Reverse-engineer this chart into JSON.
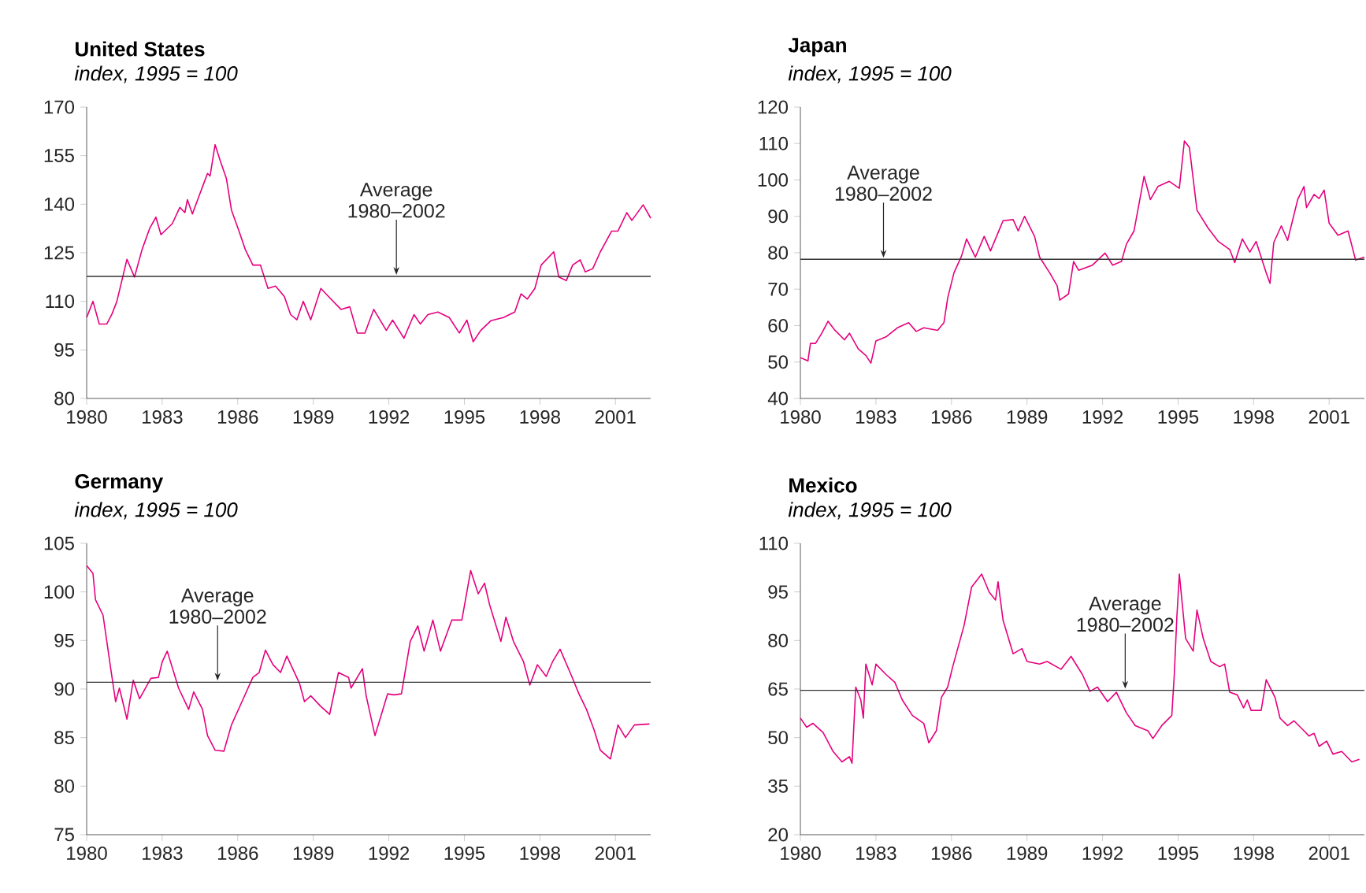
{
  "chart_data": [
    {
      "type": "line",
      "title": "United States",
      "subtitle": "*index, 1995 = 100*",
      "x": [
        1980,
        1980.25,
        1980.5,
        1980.8,
        1981.0,
        1981.2,
        1981.6,
        1981.9,
        1982.2,
        1982.5,
        1982.75,
        1982.95,
        1983.4,
        1983.7,
        1983.9,
        1984.0,
        1984.2,
        1984.6,
        1984.8,
        1984.9,
        1985.1,
        1985.3,
        1985.55,
        1985.75,
        1986.05,
        1986.3,
        1986.6,
        1986.9,
        1987.2,
        1987.5,
        1987.85,
        1988.1,
        1988.35,
        1988.6,
        1988.9,
        1989.3,
        1989.7,
        1990.1,
        1990.45,
        1990.75,
        1991.05,
        1991.4,
        1991.9,
        1992.15,
        1992.6,
        1993.0,
        1993.25,
        1993.55,
        1993.95,
        1994.4,
        1994.8,
        1995.1,
        1995.35,
        1995.65,
        1996.05,
        1996.55,
        1997.0,
        1997.25,
        1997.5,
        1997.8,
        1998.05,
        1998.55,
        1998.75,
        1999.05,
        1999.3,
        1999.6,
        1999.8,
        2000.1,
        2000.4,
        2000.85,
        2001.1,
        2001.45,
        2001.65,
        2002.1,
        2002.4
      ],
      "series": [
        {
          "color": "#e6007e",
          "values": [
            105,
            110,
            103,
            103,
            106,
            110,
            123,
            117.5,
            126,
            132.5,
            136,
            130.6,
            134,
            139,
            137.4,
            141.4,
            137,
            145.4,
            149.5,
            148.7,
            158.4,
            153.5,
            147.9,
            138.2,
            131.7,
            126,
            121.2,
            121.2,
            114,
            114.7,
            111.5,
            105.9,
            104.3,
            110,
            104.3,
            114,
            110.7,
            107.5,
            108.3,
            100.2,
            100.2,
            107.5,
            101,
            104.2,
            98.6,
            105.9,
            103,
            105.9,
            106.7,
            105,
            100.2,
            104.2,
            97.5,
            101,
            104,
            105,
            106.7,
            112.3,
            110.7,
            114,
            121.2,
            125.3,
            117.5,
            116.4,
            121.2,
            122.8,
            119.1,
            120.1,
            125.3,
            131.7,
            131.7,
            137.4,
            135,
            139.8,
            135.7
          ]
        }
      ],
      "xlim": [
        1980,
        2002.4
      ],
      "ylim": [
        80,
        170
      ],
      "xticks": [
        1980,
        1983,
        1986,
        1989,
        1992,
        1995,
        1998,
        2001
      ],
      "yticks": [
        80,
        95,
        110,
        125,
        140,
        155,
        170
      ],
      "ref_lines": [
        {
          "axis": "y",
          "value": 117.7,
          "color": "#333333"
        }
      ],
      "annotations": [
        {
          "text": "Average 1980–2002",
          "x": 1992.3,
          "y": 117.7
        }
      ]
    },
    {
      "type": "line",
      "title": "Japan",
      "subtitle": "*index, 1995 = 100*",
      "x": [
        1980,
        1980.3,
        1980.4,
        1980.6,
        1980.85,
        1981.1,
        1981.35,
        1981.75,
        1981.95,
        1982.3,
        1982.6,
        1982.8,
        1983.0,
        1983.4,
        1983.85,
        1984.3,
        1984.6,
        1984.9,
        1985.45,
        1985.7,
        1985.85,
        1986.1,
        1986.4,
        1986.6,
        1986.95,
        1987.3,
        1987.55,
        1988.05,
        1988.45,
        1988.65,
        1988.9,
        1989.3,
        1989.5,
        1989.9,
        1990.2,
        1990.3,
        1990.65,
        1990.85,
        1991.05,
        1991.6,
        1992.1,
        1992.4,
        1992.75,
        1992.95,
        1993.25,
        1993.65,
        1993.9,
        1994.2,
        1994.65,
        1995.05,
        1995.25,
        1995.45,
        1995.75,
        1996.2,
        1996.6,
        1997.05,
        1997.25,
        1997.55,
        1997.85,
        1998.1,
        1998.5,
        1998.65,
        1998.8,
        1999.1,
        1999.35,
        1999.75,
        2000.0,
        2000.1,
        2000.4,
        2000.6,
        2000.8,
        2001.0,
        2001.35,
        2001.75,
        2002.05,
        2002.4
      ],
      "series": [
        {
          "color": "#e6007e",
          "values": [
            51.2,
            50.3,
            55.1,
            55.1,
            57.9,
            61.2,
            58.9,
            56.1,
            57.9,
            53.6,
            51.8,
            49.7,
            55.8,
            56.9,
            59.4,
            60.8,
            58.4,
            59.4,
            58.7,
            60.8,
            67.6,
            74.5,
            79.1,
            83.8,
            78.8,
            84.5,
            80.5,
            88.8,
            89.1,
            86,
            90,
            84.5,
            78.8,
            74.5,
            70.9,
            67,
            68.7,
            77.6,
            75.2,
            76.6,
            79.9,
            76.6,
            77.6,
            82.4,
            86,
            101,
            94.6,
            98.2,
            99.6,
            97.7,
            110.7,
            108.9,
            91.7,
            86.7,
            83.1,
            80.9,
            77.3,
            83.8,
            80.2,
            83.1,
            74.5,
            71.6,
            82.8,
            87.4,
            83.4,
            94.6,
            98.2,
            92.4,
            96,
            94.9,
            97.2,
            88.1,
            84.8,
            86,
            78,
            78.8
          ]
        }
      ],
      "xlim": [
        1980,
        2002.4
      ],
      "ylim": [
        40,
        120
      ],
      "xticks": [
        1980,
        1983,
        1986,
        1989,
        1992,
        1995,
        1998,
        2001
      ],
      "yticks": [
        40,
        50,
        60,
        70,
        80,
        90,
        100,
        110,
        120
      ],
      "ref_lines": [
        {
          "axis": "y",
          "value": 78.2,
          "color": "#333333"
        }
      ],
      "annotations": [
        {
          "text": "Average 1980–2002",
          "x": 1983.3,
          "y": 78.2
        }
      ]
    },
    {
      "type": "line",
      "title": "Germany",
      "subtitle": "*index, 1995 = 100*",
      "x": [
        1980,
        1980.25,
        1980.35,
        1980.65,
        1980.95,
        1981.15,
        1981.3,
        1981.6,
        1981.85,
        1982.1,
        1982.55,
        1982.85,
        1983.0,
        1983.2,
        1983.65,
        1984.05,
        1984.25,
        1984.6,
        1984.8,
        1985.1,
        1985.45,
        1985.75,
        1986.15,
        1986.6,
        1986.85,
        1987.1,
        1987.4,
        1987.7,
        1987.95,
        1988.45,
        1988.65,
        1988.9,
        1989.3,
        1989.65,
        1990.0,
        1990.4,
        1990.5,
        1990.95,
        1991.1,
        1991.45,
        1991.95,
        1992.2,
        1992.5,
        1992.85,
        1993.15,
        1993.4,
        1993.75,
        1994.05,
        1994.5,
        1994.9,
        1995.25,
        1995.55,
        1995.8,
        1996.0,
        1996.45,
        1996.65,
        1996.95,
        1997.35,
        1997.6,
        1997.9,
        1998.25,
        1998.5,
        1998.8,
        1999.25,
        1999.55,
        1999.85,
        2000.15,
        2000.4,
        2000.8,
        2001.1,
        2001.4,
        2001.75,
        2002.35
      ],
      "series": [
        {
          "color": "#e6007e",
          "values": [
            102.7,
            101.9,
            99.2,
            97.6,
            92.2,
            88.7,
            90.1,
            86.9,
            90.9,
            89,
            91.1,
            91.2,
            92.8,
            93.9,
            90.1,
            87.9,
            89.7,
            87.9,
            85.2,
            83.7,
            83.6,
            86.3,
            88.6,
            91.2,
            91.7,
            94,
            92.5,
            91.7,
            93.4,
            90.6,
            88.7,
            89.3,
            88.2,
            87.4,
            91.7,
            91.2,
            90.1,
            92.1,
            89.3,
            85.2,
            89.5,
            89.4,
            89.5,
            94.9,
            96.5,
            93.9,
            97.1,
            93.9,
            97.1,
            97.1,
            102.2,
            99.8,
            100.9,
            98.7,
            94.9,
            97.4,
            94.9,
            92.8,
            90.4,
            92.5,
            91.3,
            92.8,
            94.1,
            91.4,
            89.5,
            87.9,
            85.8,
            83.7,
            82.8,
            86.3,
            85,
            86.3,
            86.4
          ]
        }
      ],
      "xlim": [
        1980,
        2002.4
      ],
      "ylim": [
        75,
        105
      ],
      "xticks": [
        1980,
        1983,
        1986,
        1989,
        1992,
        1995,
        1998,
        2001
      ],
      "yticks": [
        75,
        80,
        85,
        90,
        95,
        100,
        105
      ],
      "ref_lines": [
        {
          "axis": "y",
          "value": 90.7,
          "color": "#333333"
        }
      ],
      "annotations": [
        {
          "text": "Average 1980–2002",
          "x": 1985.2,
          "y": 90.7
        }
      ]
    },
    {
      "type": "line",
      "title": "Mexico",
      "subtitle": "*index, 1995 = 100*",
      "x": [
        1980,
        1980.25,
        1980.5,
        1980.9,
        1981.3,
        1981.65,
        1981.95,
        1982.05,
        1982.2,
        1982.4,
        1982.5,
        1982.6,
        1982.85,
        1983.0,
        1983.4,
        1983.75,
        1984.05,
        1984.45,
        1984.9,
        1985.1,
        1985.4,
        1985.6,
        1985.85,
        1986.05,
        1986.5,
        1986.8,
        1987.2,
        1987.5,
        1987.75,
        1987.85,
        1988.05,
        1988.45,
        1988.8,
        1989.0,
        1989.5,
        1989.8,
        1990.35,
        1990.75,
        1991.2,
        1991.5,
        1991.8,
        1992.2,
        1992.55,
        1992.95,
        1993.3,
        1993.8,
        1994.0,
        1994.35,
        1994.75,
        1994.85,
        1994.95,
        1995.05,
        1995.3,
        1995.6,
        1995.75,
        1996.0,
        1996.3,
        1996.65,
        1996.85,
        1997.05,
        1997.35,
        1997.6,
        1997.75,
        1997.9,
        1998.3,
        1998.5,
        1998.85,
        1999.05,
        1999.35,
        1999.6,
        2000.0,
        2000.2,
        2000.4,
        2000.6,
        2000.9,
        2001.15,
        2001.5,
        2001.9,
        2002.2
      ],
      "series": [
        {
          "color": "#e6007e",
          "values": [
            56,
            53.2,
            54.4,
            51.6,
            45.7,
            42.5,
            44.1,
            42.1,
            65.6,
            61.6,
            56,
            72.7,
            66.3,
            72.7,
            69.5,
            67.1,
            61.6,
            56.8,
            54.4,
            48.4,
            52.1,
            62.4,
            65.6,
            71.9,
            84.6,
            96.5,
            100.5,
            94.9,
            92.5,
            98.1,
            86.2,
            75.9,
            77.5,
            73.5,
            72.7,
            73.5,
            71.1,
            75.1,
            69.5,
            64.3,
            65.6,
            61.1,
            64,
            57.6,
            53.7,
            52.1,
            49.7,
            53.7,
            56.8,
            69.5,
            87,
            100.5,
            80.6,
            76.7,
            89.4,
            80.6,
            73.5,
            71.9,
            72.7,
            64,
            63.2,
            59.2,
            61.6,
            58.4,
            58.4,
            67.9,
            62.4,
            56,
            53.7,
            55.2,
            52.1,
            50.5,
            51.3,
            47.3,
            48.9,
            44.9,
            45.7,
            42.5,
            43.3
          ]
        }
      ],
      "xlim": [
        1980,
        2002.4
      ],
      "ylim": [
        20,
        110
      ],
      "xticks": [
        1980,
        1983,
        1986,
        1989,
        1992,
        1995,
        1998,
        2001
      ],
      "yticks": [
        20,
        35,
        50,
        65,
        80,
        95,
        110
      ],
      "ref_lines": [
        {
          "axis": "y",
          "value": 64.6,
          "color": "#333333"
        }
      ],
      "annotations": [
        {
          "text": "Average 1980–2002",
          "x": 1992.9,
          "y": 64.6
        }
      ]
    }
  ]
}
